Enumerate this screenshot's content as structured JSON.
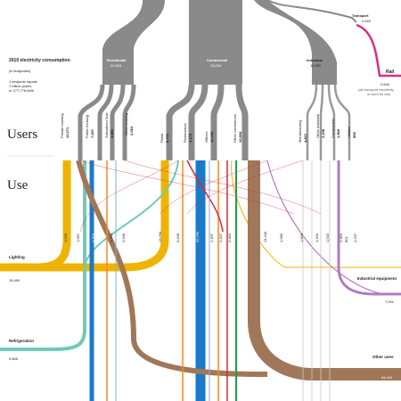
{
  "title": "2010 electricity consumption",
  "title_sub": "(in terajoules)",
  "note_line1": "1 terajoule equals",
  "note_line2": "1 trillion joules",
  "note_line3": "or 277,778 kWh",
  "section_users": "Users",
  "section_use": "Use",
  "users": {
    "transport": {
      "label": "Transport",
      "value": "2,640"
    },
    "residential": {
      "label": "Residential",
      "value": "22,516"
    },
    "commercial": {
      "label": "Commercial",
      "value": "33,094"
    },
    "industrial": {
      "label": "Industrial",
      "value": "11,080"
    },
    "rail": {
      "label": "Rail",
      "value": "2,640",
      "note1": "(all transport electricity",
      "note2": "is used by rail)"
    }
  },
  "subusers": {
    "private_housing": {
      "label": "Private housing",
      "value": "13,271"
    },
    "public_housing": {
      "label": "Public housing",
      "value": "7,057"
    },
    "subsidised_sale": {
      "label": "Subsidised Sale",
      "value": "6,881"
    },
    "other_housing": {
      "label": "Other housing",
      "value": "2,084"
    },
    "retail": {
      "label": "Retail",
      "value": "8,702"
    },
    "restaurants": {
      "label": "Restaurants",
      "value": "9,178"
    },
    "offices": {
      "label": "Offices",
      "value": "10,096"
    },
    "other_commercial": {
      "label": "Other commercial",
      "value": "10,894"
    },
    "manufacturing": {
      "label": "Manufacturing",
      "value": "4,822"
    },
    "other_industrial": {
      "label": "Other industrial",
      "value": "2,158"
    },
    "construction": {
      "label": "Construction",
      "value": "1,968"
    },
    "utilities": {
      "label": "Utilities",
      "value": "898"
    }
  },
  "use_values": [
    "1,643",
    "1,967",
    "4,309",
    "4,416",
    "1,430",
    "4,438",
    "13,760",
    "6,438",
    "32,765",
    "2,407",
    "2,437",
    "2,463",
    "14,345",
    "1,086",
    "1,096",
    "1,430",
    "1,543",
    "2,463",
    "801",
    "2,437"
  ],
  "uses": {
    "lighting": {
      "label": "Lighting",
      "value": "15,490"
    },
    "refrigeration": {
      "label": "Refrigeration",
      "value": "9,665"
    },
    "industrial_equipment": {
      "label": "Industrial equipment",
      "value": "7,041"
    },
    "other_uses": {
      "label": "Other uses",
      "value": "44,444"
    }
  },
  "colors": {
    "gray": "#8a8a8a",
    "lighting": "#f0b400",
    "refrigeration": "#6fcbb6",
    "cooling": "#1a7ac7",
    "other_uses": "#a07859",
    "industrial_equipment": "#b07ac0",
    "rail": "#d8307a",
    "orange": "#f08a2a",
    "red": "#d8283a",
    "green": "#2a9a4a",
    "blue2": "#7ab0e0"
  }
}
